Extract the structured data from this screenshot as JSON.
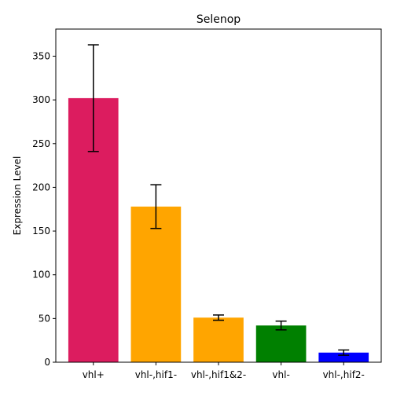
{
  "chart_data": {
    "type": "bar",
    "title": "Selenop",
    "xlabel": "",
    "ylabel": "Expression Level",
    "categories": [
      "vhl+",
      "vhl-,hif1-",
      "vhl-,hif1&2-",
      "vhl-",
      "vhl-,hif2-"
    ],
    "values": [
      302,
      178,
      51,
      42,
      11
    ],
    "errors": [
      61,
      25,
      3,
      5,
      3
    ],
    "bar_colors": [
      "#DC1C5F",
      "#FFA500",
      "#FFA500",
      "#008000",
      "#0000FF"
    ],
    "ylim": [
      0,
      381
    ],
    "yticks": [
      0,
      50,
      100,
      150,
      200,
      250,
      300,
      350
    ],
    "grid": false,
    "legend": "none"
  }
}
